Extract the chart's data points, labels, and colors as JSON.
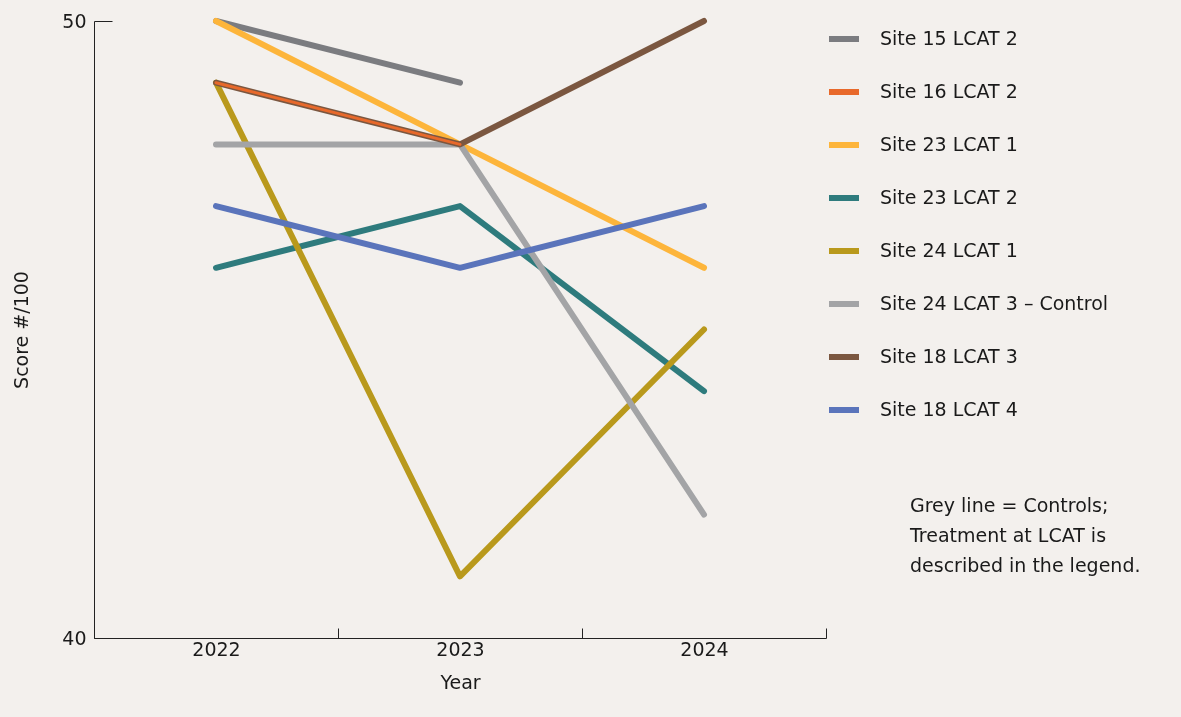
{
  "chart_data": {
    "type": "line",
    "xlabel": "Year",
    "ylabel": "Score #/100",
    "categories": [
      "2022",
      "2023",
      "2024"
    ],
    "series": [
      {
        "name": "Site 15 LCAT 2",
        "color": "#7b7c80",
        "values": [
          50,
          49,
          null
        ]
      },
      {
        "name": "Site 16 LCAT 2",
        "color": "#e8692b",
        "values": [
          49,
          48,
          null
        ]
      },
      {
        "name": "Site 23 LCAT 1",
        "color": "#fdb53b",
        "values": [
          50,
          48,
          46
        ]
      },
      {
        "name": "Site 23 LCAT 2",
        "color": "#2e7b7d",
        "values": [
          46,
          47,
          44
        ]
      },
      {
        "name": "Site 24 LCAT 1",
        "color": "#b9991c",
        "values": [
          49,
          41,
          45
        ]
      },
      {
        "name": "Site 24 LCAT 3 – Control",
        "color": "#a3a4a6",
        "values": [
          48,
          48,
          42
        ]
      },
      {
        "name": "Site 18 LCAT 3",
        "color": "#7b5740",
        "values": [
          49,
          48,
          50
        ]
      },
      {
        "name": "Site 18 LCAT 4",
        "color": "#5a74bb",
        "values": [
          47,
          46,
          47
        ]
      }
    ],
    "ylim": [
      40,
      50
    ],
    "yticks": [
      40,
      50
    ],
    "grid": false,
    "legend": "top right",
    "marker": "none",
    "line_style": "solid",
    "annotations": [
      "Grey line = Controls; Treatment at LCAT is described in the legend."
    ]
  }
}
